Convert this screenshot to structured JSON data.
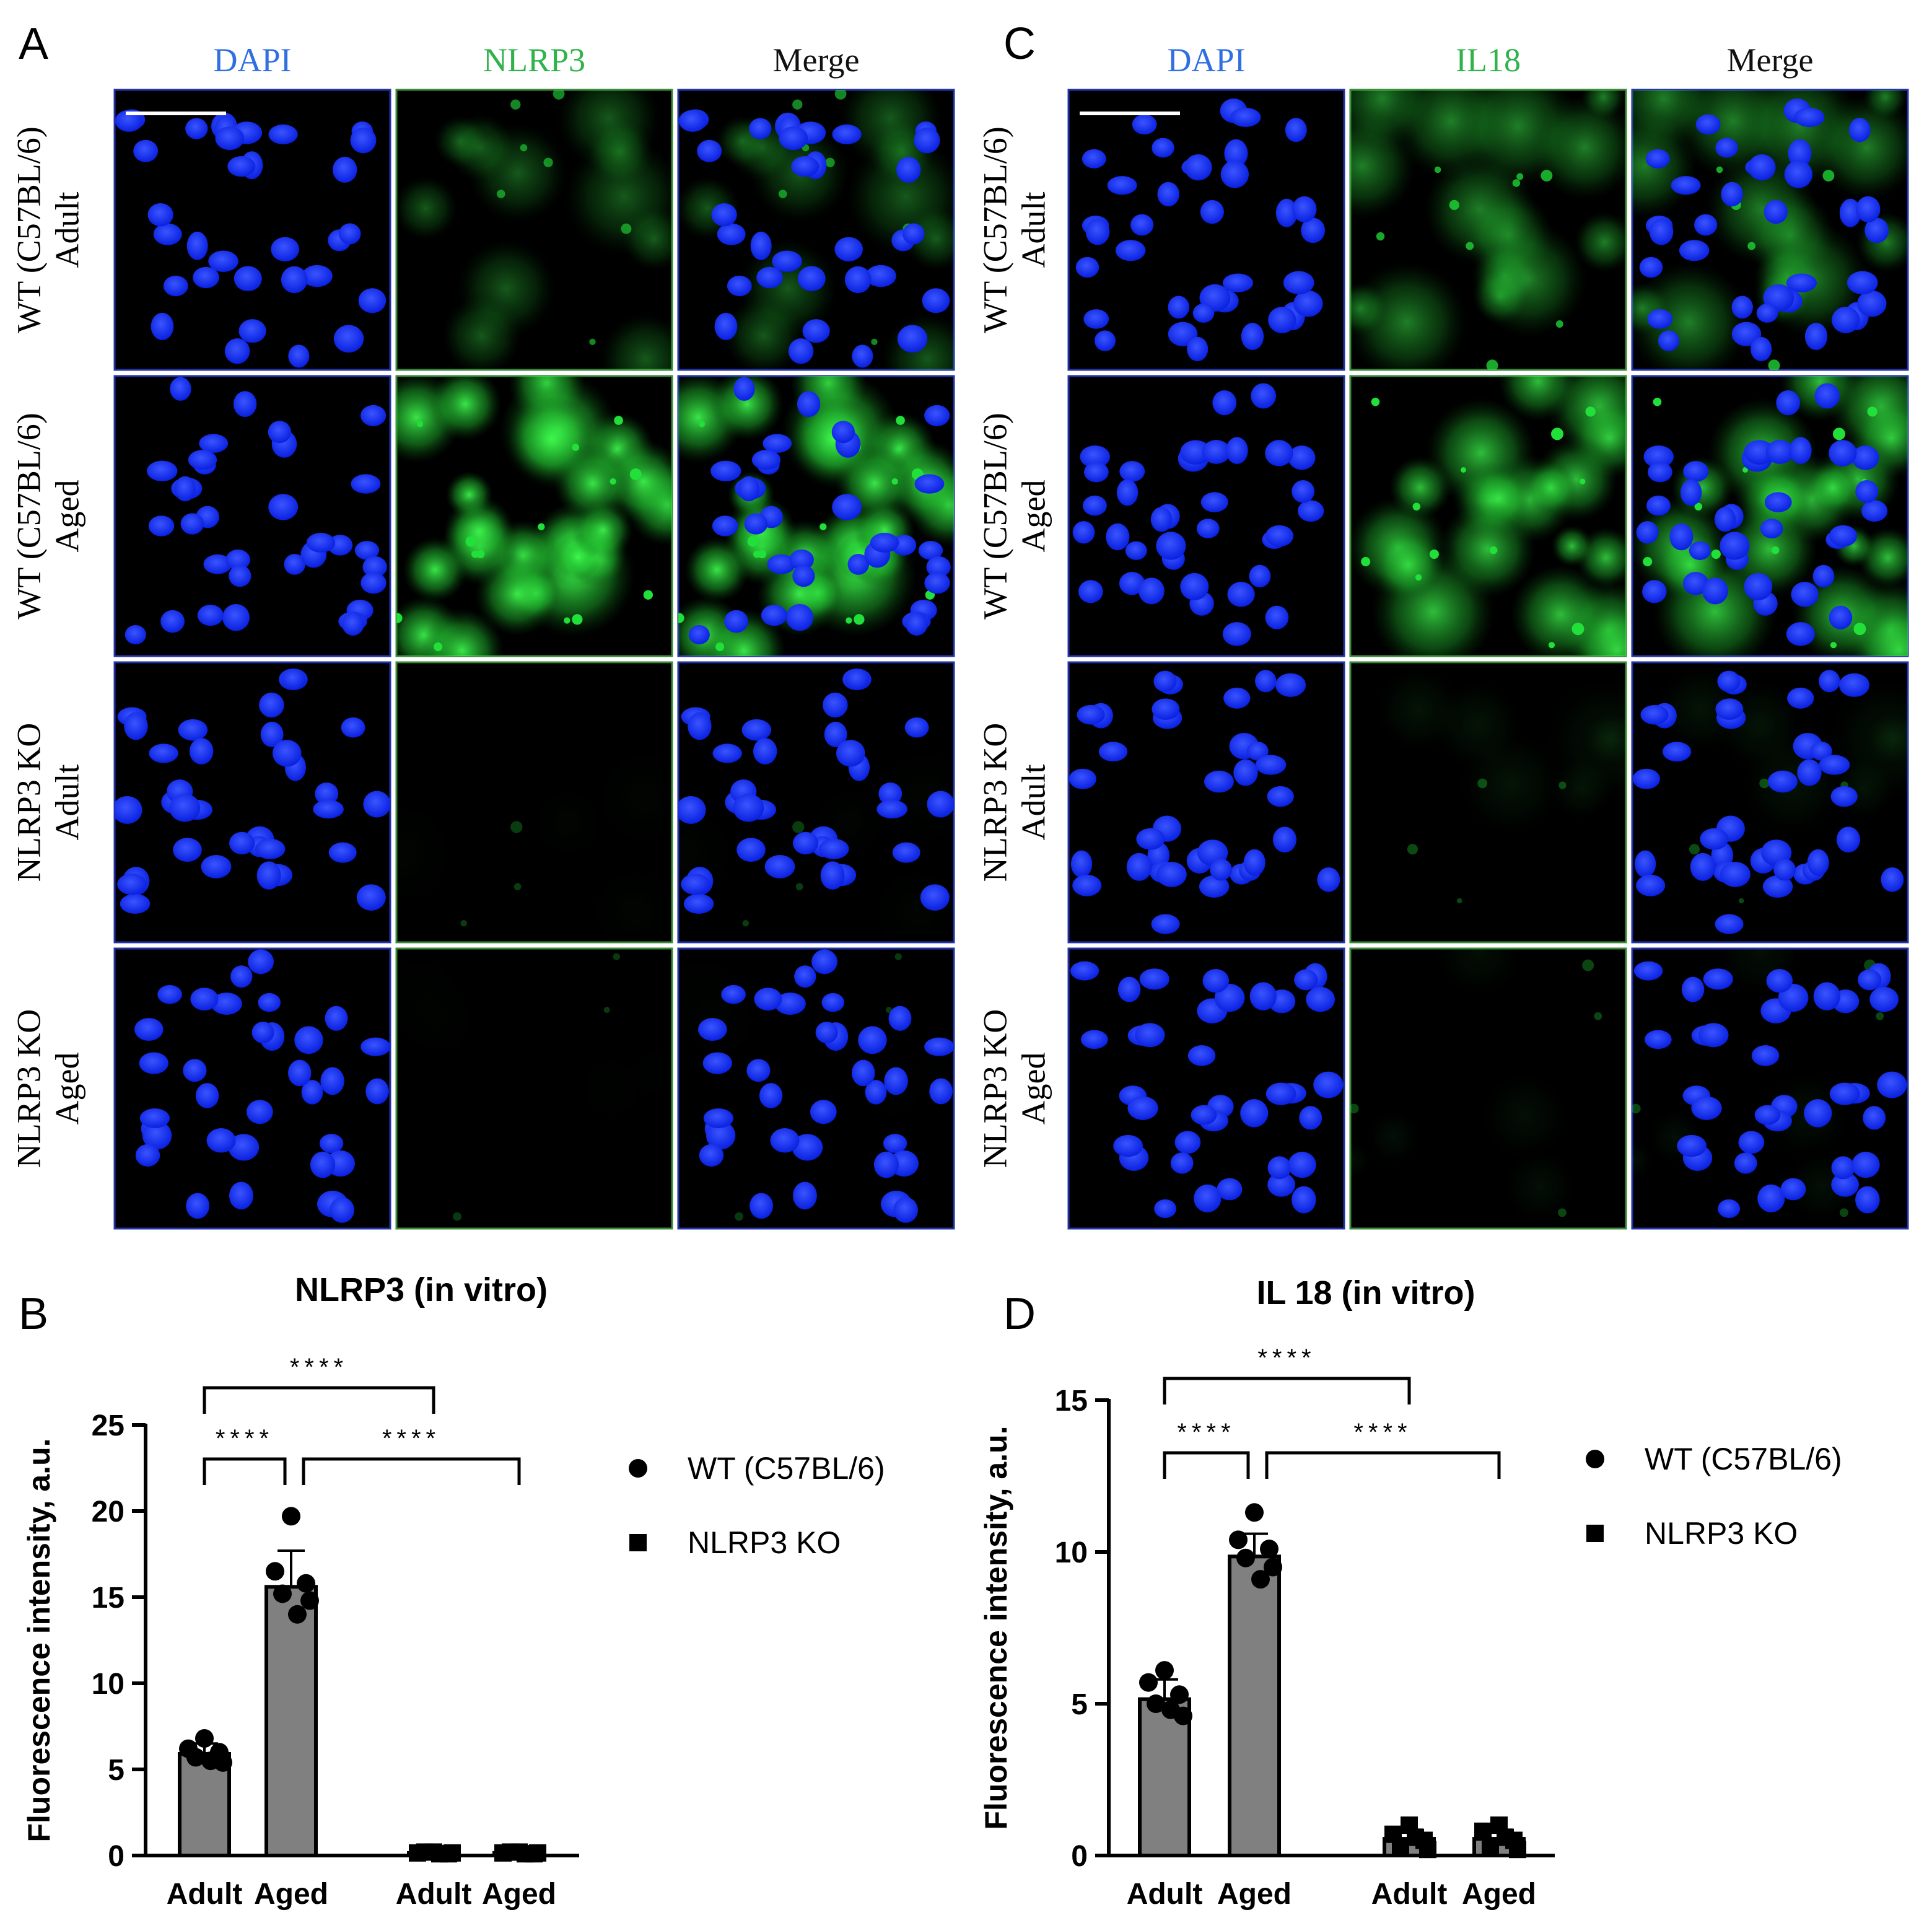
{
  "panel_letters": {
    "a": "A",
    "b": "B",
    "c": "C",
    "d": "D"
  },
  "colors": {
    "dapi": "#0a2cff",
    "green": "#22e03a",
    "header_blue": "#2f6fe0",
    "header_green": "#2fb34a",
    "bar_fill": "#808080"
  },
  "panel_a": {
    "columns": [
      {
        "label": "DAPI",
        "channel": "dapi"
      },
      {
        "label": "NLRP3",
        "channel": "green"
      },
      {
        "label": "Merge",
        "channel": "merge"
      }
    ],
    "rows": [
      {
        "genotype": "WT (C57BL/6)",
        "age": "Adult",
        "green_level": 0.35
      },
      {
        "genotype": "WT (C57BL/6)",
        "age": "Aged",
        "green_level": 0.95
      },
      {
        "genotype": "NLRP3 KO",
        "age": "Adult",
        "green_level": 0.02
      },
      {
        "genotype": "NLRP3 KO",
        "age": "Aged",
        "green_level": 0.01
      }
    ]
  },
  "panel_c": {
    "columns": [
      {
        "label": "DAPI",
        "channel": "dapi"
      },
      {
        "label": "IL18",
        "channel": "green"
      },
      {
        "label": "Merge",
        "channel": "merge"
      }
    ],
    "rows": [
      {
        "genotype": "WT (C57BL/6)",
        "age": "Adult",
        "green_level": 0.5
      },
      {
        "genotype": "WT (C57BL/6)",
        "age": "Aged",
        "green_level": 0.75
      },
      {
        "genotype": "NLRP3 KO",
        "age": "Adult",
        "green_level": 0.08
      },
      {
        "genotype": "NLRP3 KO",
        "age": "Aged",
        "green_level": 0.06
      }
    ]
  },
  "chart_data": [
    {
      "type": "bar",
      "title": "NLRP3 (in vitro)",
      "ylabel": "Fluorescence intensity, a.u.",
      "xlabel": "",
      "categories": [
        "Adult",
        "Aged",
        "Adult",
        "Aged"
      ],
      "groups": [
        "WT (C57BL/6)",
        "WT (C57BL/6)",
        "NLRP3 KO",
        "NLRP3 KO"
      ],
      "values": [
        5.9,
        15.6,
        0.15,
        0.15
      ],
      "errors": [
        0.6,
        2.1,
        0.05,
        0.05
      ],
      "points": [
        [
          6.8,
          6.2,
          6.0,
          5.7,
          5.4,
          5.5
        ],
        [
          19.7,
          16.5,
          15.8,
          15.2,
          14.8,
          14.0
        ],
        [
          0.2,
          0.15,
          0.1,
          0.2,
          0.15,
          0.1
        ],
        [
          0.2,
          0.15,
          0.1,
          0.2,
          0.15,
          0.1
        ]
      ],
      "ylim": [
        0,
        25
      ],
      "yticks": [
        0,
        5,
        10,
        15,
        20,
        25
      ],
      "significance": [
        {
          "from": 0,
          "to": 2,
          "label": "****"
        },
        {
          "from": 0,
          "to": 1,
          "label": "****"
        },
        {
          "from": 1,
          "to": 3,
          "label": "****"
        }
      ],
      "legend": [
        {
          "label": "WT (C57BL/6)",
          "marker": "circle"
        },
        {
          "label": "NLRP3 KO",
          "marker": "square"
        }
      ],
      "legend_position": "right",
      "grid": false
    },
    {
      "type": "bar",
      "title": "IL 18 (in vitro)",
      "ylabel": "Fluorescence intensity, a.u.",
      "xlabel": "",
      "categories": [
        "Adult",
        "Aged",
        "Adult",
        "Aged"
      ],
      "groups": [
        "WT (C57BL/6)",
        "WT (C57BL/6)",
        "NLRP3 KO",
        "NLRP3 KO"
      ],
      "values": [
        5.15,
        9.85,
        0.55,
        0.55
      ],
      "errors": [
        0.65,
        0.75,
        0.3,
        0.3
      ],
      "points": [
        [
          6.1,
          5.7,
          5.3,
          5.0,
          4.6,
          4.8
        ],
        [
          11.3,
          10.4,
          10.1,
          9.8,
          9.5,
          9.1
        ],
        [
          1.0,
          0.7,
          0.5,
          0.3,
          0.2,
          0.6
        ],
        [
          1.0,
          0.8,
          0.5,
          0.3,
          0.2,
          0.6
        ]
      ],
      "ylim": [
        0,
        15
      ],
      "yticks": [
        0,
        5,
        10,
        15
      ],
      "significance": [
        {
          "from": 0,
          "to": 2,
          "label": "****"
        },
        {
          "from": 0,
          "to": 1,
          "label": "****"
        },
        {
          "from": 1,
          "to": 3,
          "label": "****"
        }
      ],
      "legend": [
        {
          "label": "WT (C57BL/6)",
          "marker": "circle"
        },
        {
          "label": "NLRP3 KO",
          "marker": "square"
        }
      ],
      "legend_position": "right",
      "grid": false
    }
  ]
}
